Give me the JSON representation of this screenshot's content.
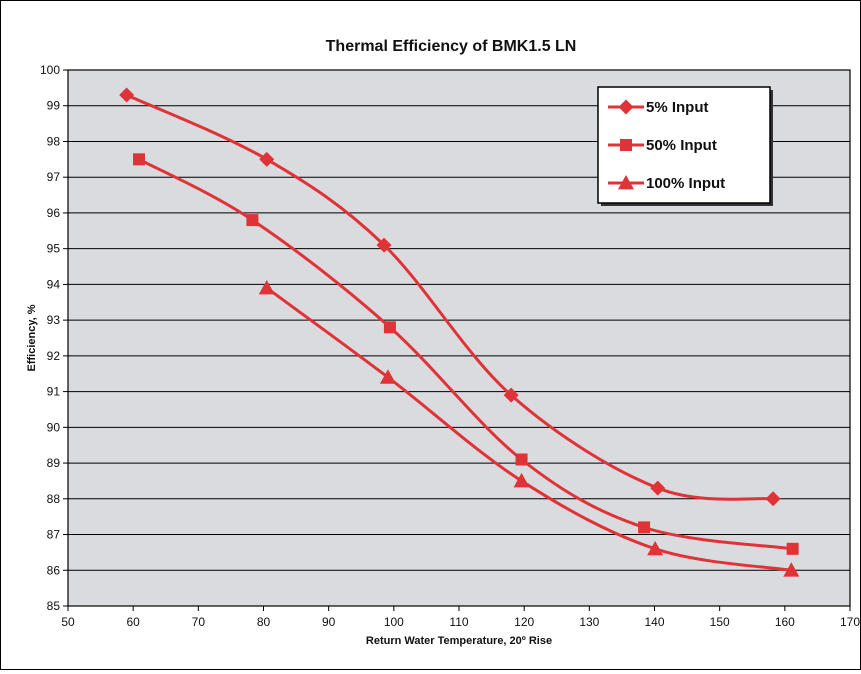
{
  "chart_data": {
    "type": "line",
    "title": "Thermal Efficiency of BMK1.5 LN",
    "xlabel": "Return Water Temperature, 20º Rise",
    "ylabel": "Efficiency, %",
    "xlim": [
      50,
      170
    ],
    "ylim": [
      85,
      100
    ],
    "xticks": [
      50,
      60,
      70,
      80,
      90,
      100,
      110,
      120,
      130,
      140,
      150,
      160,
      170
    ],
    "yticks": [
      85,
      86,
      87,
      88,
      89,
      90,
      91,
      92,
      93,
      94,
      95,
      96,
      97,
      98,
      99,
      100
    ],
    "grid": "horizontal",
    "legend_position": "top-right",
    "series": [
      {
        "name": "5% Input",
        "marker": "diamond",
        "color": "#e03338",
        "x": [
          59,
          80.5,
          98.5,
          118,
          140.5,
          158.2
        ],
        "y": [
          99.3,
          97.5,
          95.1,
          90.9,
          88.3,
          88.0
        ]
      },
      {
        "name": "50% Input",
        "marker": "square",
        "color": "#e03338",
        "x": [
          60.9,
          78.3,
          99.4,
          119.6,
          138.4,
          161.2
        ],
        "y": [
          97.5,
          95.8,
          92.8,
          89.1,
          87.2,
          86.6
        ]
      },
      {
        "name": "100% Input",
        "marker": "triangle",
        "color": "#e03338",
        "x": [
          80.5,
          99.1,
          119.6,
          140.1,
          161
        ],
        "y": [
          93.9,
          91.4,
          88.5,
          86.6,
          86.0
        ]
      }
    ]
  }
}
